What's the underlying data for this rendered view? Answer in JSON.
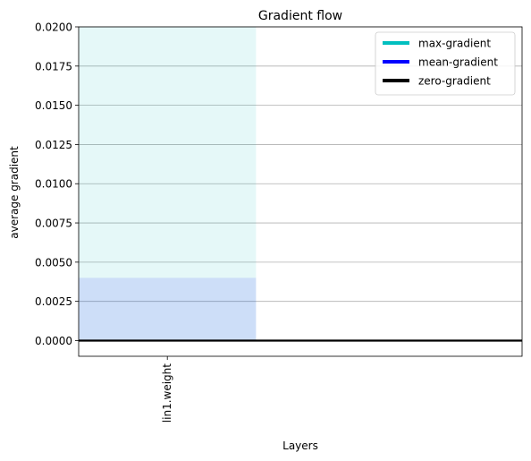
{
  "chart_data": {
    "type": "bar",
    "title": "Gradient flow",
    "xlabel": "Layers",
    "ylabel": "average gradient",
    "categories": [
      "lin1.weight"
    ],
    "series": [
      {
        "name": "max-gradient",
        "values": [
          0.02
        ],
        "color": "#00bfbf",
        "alpha": 0.1
      },
      {
        "name": "mean-gradient",
        "values": [
          0.004
        ],
        "color": "#0000ff",
        "alpha": 0.1
      }
    ],
    "zero_line": {
      "name": "zero-gradient",
      "value": 0,
      "color": "#000000"
    },
    "xlim": [
      -0.5,
      2.0
    ],
    "ylim": [
      -0.001,
      0.02
    ],
    "yticks": [
      "0.0000",
      "0.0025",
      "0.0050",
      "0.0075",
      "0.0100",
      "0.0125",
      "0.0150",
      "0.0175",
      "0.0200"
    ],
    "grid": "y",
    "legend_position": "top-right",
    "x_tick_rotation": "vertical"
  }
}
